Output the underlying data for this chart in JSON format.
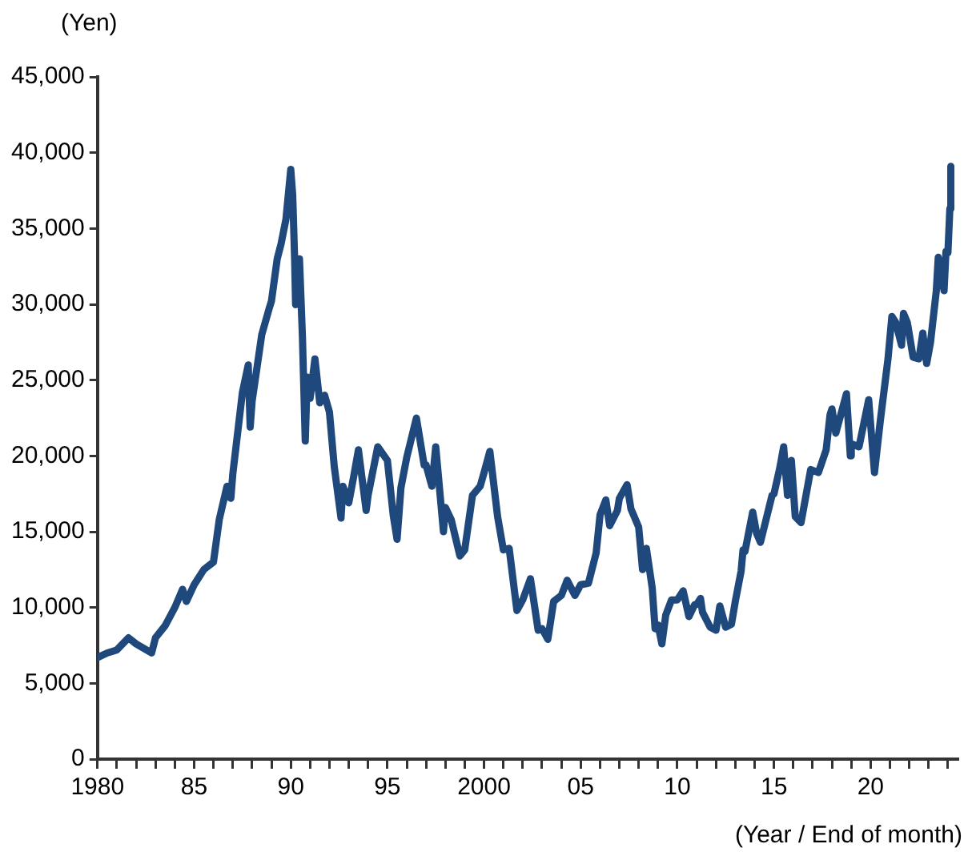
{
  "chart_data": {
    "type": "line",
    "ylabel": "(Yen)",
    "xlabel": "(Year / End of month)",
    "grid": false,
    "legend": false,
    "marker": "none",
    "line_style": "solid",
    "xlim": [
      1980,
      2024.5
    ],
    "xticks": [
      1980,
      {
        "value": 1981,
        "label": null
      },
      {
        "value": 1982,
        "label": null
      },
      {
        "value": 1983,
        "label": null
      },
      {
        "value": 1984,
        "label": null
      },
      {
        "value": 1985,
        "label": "85"
      },
      {
        "value": 1986,
        "label": null
      },
      {
        "value": 1987,
        "label": null
      },
      {
        "value": 1988,
        "label": null
      },
      {
        "value": 1989,
        "label": null
      },
      {
        "value": 1990,
        "label": "90"
      },
      {
        "value": 1991,
        "label": null
      },
      {
        "value": 1992,
        "label": null
      },
      {
        "value": 1993,
        "label": null
      },
      {
        "value": 1994,
        "label": null
      },
      {
        "value": 1995,
        "label": "95"
      },
      {
        "value": 1996,
        "label": null
      },
      {
        "value": 1997,
        "label": null
      },
      {
        "value": 1998,
        "label": null
      },
      {
        "value": 1999,
        "label": null
      },
      2000,
      {
        "value": 2001,
        "label": null
      },
      {
        "value": 2002,
        "label": null
      },
      {
        "value": 2003,
        "label": null
      },
      {
        "value": 2004,
        "label": null
      },
      {
        "value": 2005,
        "label": "05"
      },
      {
        "value": 2006,
        "label": null
      },
      {
        "value": 2007,
        "label": null
      },
      {
        "value": 2008,
        "label": null
      },
      {
        "value": 2009,
        "label": null
      },
      {
        "value": 2010,
        "label": "10"
      },
      {
        "value": 2011,
        "label": null
      },
      {
        "value": 2012,
        "label": null
      },
      {
        "value": 2013,
        "label": null
      },
      {
        "value": 2014,
        "label": null
      },
      {
        "value": 2015,
        "label": "15"
      },
      {
        "value": 2016,
        "label": null
      },
      {
        "value": 2017,
        "label": null
      },
      {
        "value": 2018,
        "label": null
      },
      {
        "value": 2019,
        "label": null
      },
      {
        "value": 2020,
        "label": "20"
      },
      {
        "value": 2021,
        "label": null
      },
      {
        "value": 2022,
        "label": null
      },
      {
        "value": 2023,
        "label": null
      },
      {
        "value": 2024,
        "label": null
      }
    ],
    "ylim": [
      0,
      45000
    ],
    "yticks": [
      {
        "value": 0,
        "label": "0"
      },
      {
        "value": 5000,
        "label": "5,000"
      },
      {
        "value": 10000,
        "label": "10,000"
      },
      {
        "value": 15000,
        "label": "15,000"
      },
      {
        "value": 20000,
        "label": "20,000"
      },
      {
        "value": 25000,
        "label": "25,000"
      },
      {
        "value": 30000,
        "label": "30,000"
      },
      {
        "value": 35000,
        "label": "35,000"
      },
      {
        "value": 40000,
        "label": "40,000"
      },
      {
        "value": 45000,
        "label": "45,000"
      }
    ],
    "series": [
      {
        "color": "#1f497d",
        "x": [
          1980.0,
          1980.5,
          1981.0,
          1981.6,
          1982.0,
          1982.8,
          1983.0,
          1983.5,
          1984.0,
          1984.4,
          1984.6,
          1985.0,
          1985.5,
          1986.0,
          1986.3,
          1986.7,
          1986.9,
          1987.0,
          1987.5,
          1987.8,
          1987.9,
          1988.0,
          1988.5,
          1988.9,
          1989.0,
          1989.3,
          1989.5,
          1989.75,
          1990.0,
          1990.1,
          1990.2,
          1990.25,
          1990.45,
          1990.6,
          1990.75,
          1990.85,
          1991.0,
          1991.25,
          1991.5,
          1991.75,
          1992.0,
          1992.25,
          1992.6,
          1992.7,
          1993.0,
          1993.25,
          1993.5,
          1993.9,
          1994.0,
          1994.5,
          1995.0,
          1995.3,
          1995.5,
          1995.7,
          1996.0,
          1996.5,
          1996.9,
          1997.0,
          1997.3,
          1997.5,
          1997.9,
          1998.0,
          1998.3,
          1998.75,
          1999.0,
          1999.4,
          1999.8,
          2000.0,
          2000.3,
          2000.7,
          2001.0,
          2001.3,
          2001.7,
          2002.0,
          2002.4,
          2002.8,
          2003.0,
          2003.3,
          2003.6,
          2004.0,
          2004.3,
          2004.7,
          2005.0,
          2005.4,
          2005.8,
          2006.0,
          2006.3,
          2006.5,
          2006.9,
          2007.0,
          2007.4,
          2007.6,
          2008.0,
          2008.2,
          2008.4,
          2008.7,
          2008.85,
          2009.0,
          2009.2,
          2009.4,
          2009.7,
          2010.0,
          2010.3,
          2010.6,
          2010.9,
          2011.0,
          2011.2,
          2011.3,
          2011.7,
          2012.0,
          2012.2,
          2012.5,
          2012.8,
          2013.0,
          2013.3,
          2013.4,
          2013.5,
          2013.9,
          2014.1,
          2014.3,
          2014.9,
          2015.0,
          2015.3,
          2015.5,
          2015.7,
          2015.9,
          2016.1,
          2016.4,
          2016.9,
          2017.3,
          2017.7,
          2017.9,
          2018.0,
          2018.2,
          2018.75,
          2018.95,
          2019.0,
          2019.4,
          2019.9,
          2020.2,
          2020.5,
          2020.9,
          2021.1,
          2021.3,
          2021.6,
          2021.7,
          2021.9,
          2022.2,
          2022.5,
          2022.7,
          2022.9,
          2023.1,
          2023.4,
          2023.5,
          2023.6,
          2023.8,
          2023.9,
          2024.0,
          2024.1,
          2024.15
        ],
        "values": [
          6700,
          7000,
          7200,
          8000,
          7600,
          7000,
          8000,
          8800,
          10000,
          11200,
          10400,
          11500,
          12500,
          13000,
          15800,
          18000,
          17200,
          18800,
          24200,
          26000,
          21900,
          23600,
          28000,
          29800,
          30200,
          33000,
          34000,
          35600,
          38900,
          37200,
          33000,
          29980,
          33000,
          28000,
          20980,
          25200,
          23800,
          26400,
          23500,
          24000,
          22900,
          19300,
          15900,
          18000,
          16900,
          18600,
          20400,
          16400,
          17400,
          20600,
          19700,
          16100,
          14500,
          17900,
          19900,
          22500,
          19400,
          19400,
          18000,
          20600,
          15000,
          16600,
          15800,
          13400,
          13800,
          17400,
          18000,
          18900,
          20300,
          16000,
          13800,
          13900,
          9800,
          10500,
          11900,
          8500,
          8600,
          7900,
          10400,
          10800,
          11800,
          10800,
          11500,
          11600,
          13600,
          16100,
          17100,
          15400,
          16400,
          17200,
          18100,
          16500,
          15300,
          12500,
          13900,
          11300,
          8600,
          8850,
          7600,
          9500,
          10500,
          10500,
          11100,
          9400,
          10200,
          10200,
          10600,
          9700,
          8700,
          8500,
          10100,
          8700,
          8900,
          10400,
          12400,
          13800,
          13700,
          16300,
          14900,
          14300,
          17400,
          17500,
          19200,
          20600,
          17400,
          19700,
          16000,
          15600,
          19100,
          18900,
          20400,
          22700,
          23100,
          21500,
          24100,
          20000,
          20800,
          20600,
          23700,
          18900,
          22300,
          26400,
          29200,
          28800,
          27300,
          29400,
          28800,
          26500,
          26400,
          28100,
          26100,
          27500,
          30900,
          33100,
          32600,
          30900,
          33500,
          33400,
          36300,
          39100
        ]
      }
    ]
  }
}
